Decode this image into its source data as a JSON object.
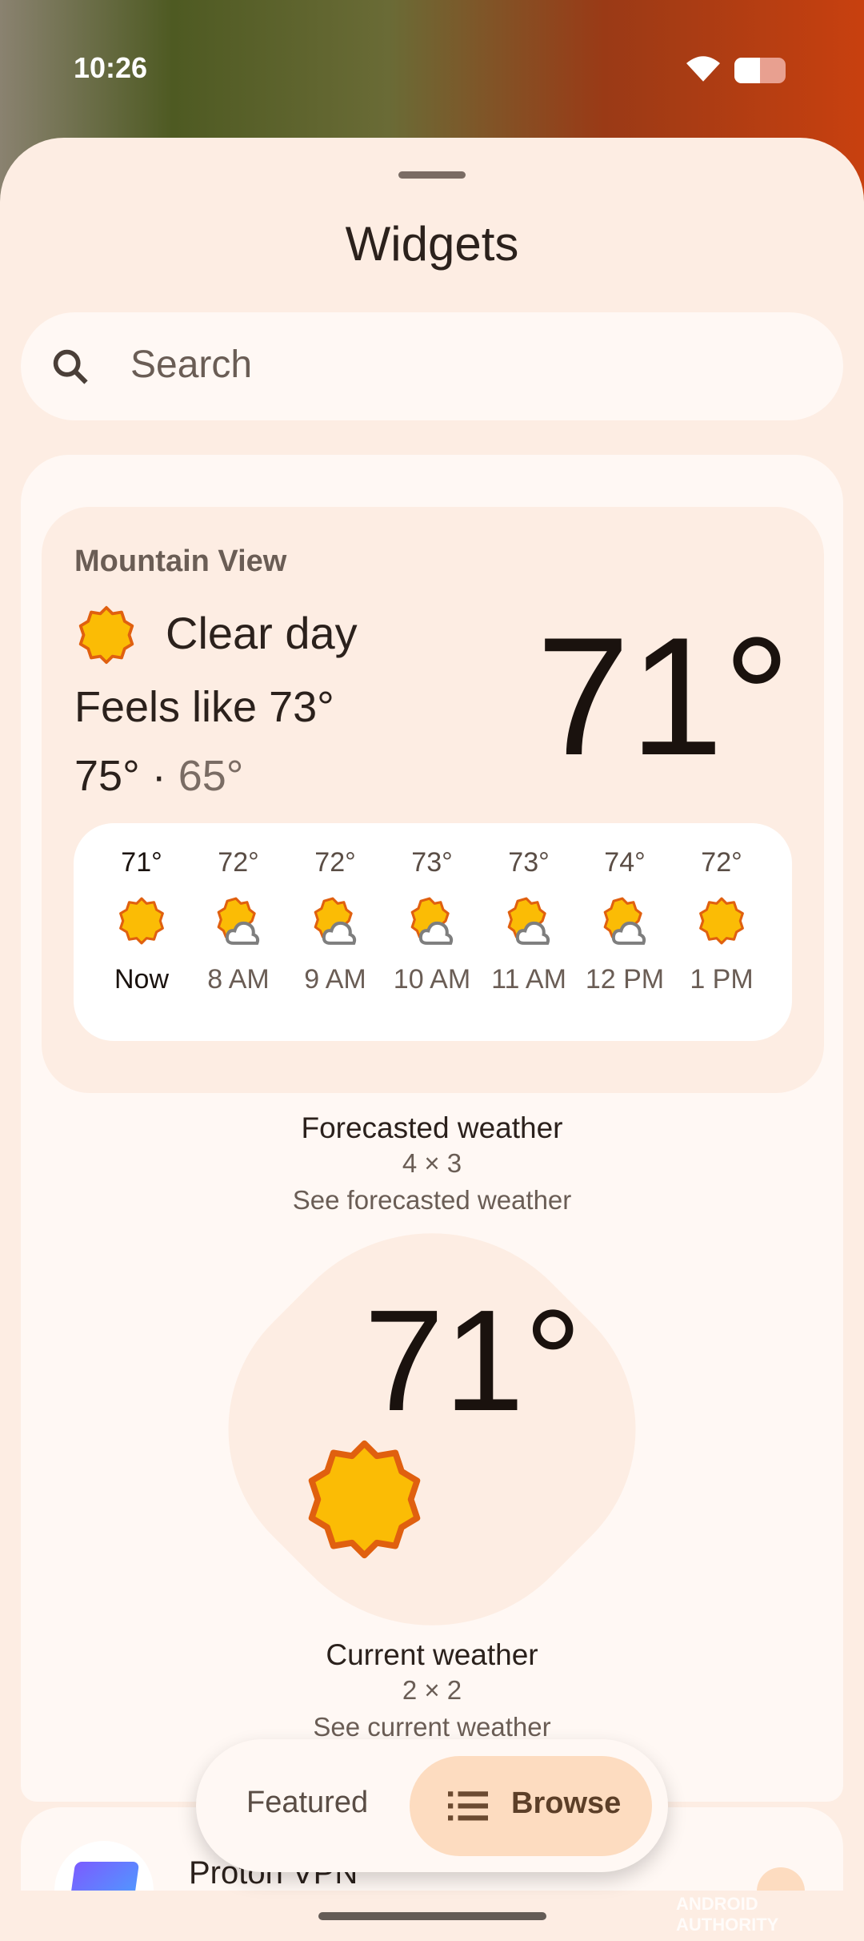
{
  "status": {
    "time": "10:26",
    "wifi": "wifi-icon",
    "battery": "battery-icon",
    "battery_level": 0.5
  },
  "sheet": {
    "title": "Widgets"
  },
  "search": {
    "placeholder": "Search",
    "icon": "search-icon"
  },
  "forecast_widget": {
    "location": "Mountain View",
    "condition": "Clear day",
    "feels_like": "Feels like 73°",
    "high": "75°",
    "separator": "·",
    "low": "65°",
    "temp": "71°",
    "hours": [
      {
        "temp": "71°",
        "time": "Now",
        "icon": "sun"
      },
      {
        "temp": "72°",
        "time": "8 AM",
        "icon": "partly-cloudy"
      },
      {
        "temp": "72°",
        "time": "9 AM",
        "icon": "partly-cloudy"
      },
      {
        "temp": "73°",
        "time": "10 AM",
        "icon": "partly-cloudy"
      },
      {
        "temp": "73°",
        "time": "11 AM",
        "icon": "partly-cloudy"
      },
      {
        "temp": "74°",
        "time": "12 PM",
        "icon": "partly-cloudy"
      },
      {
        "temp": "72°",
        "time": "1 PM",
        "icon": "sun"
      }
    ],
    "name": "Forecasted weather",
    "size": "4 × 3",
    "description": "See forecasted weather"
  },
  "current_widget": {
    "temp": "71°",
    "name": "Current weather",
    "size": "2 × 2",
    "description": "See current weather"
  },
  "next_app": {
    "name": "Proton VPN"
  },
  "tabs": {
    "featured": "Featured",
    "browse": "Browse",
    "selected": "Browse"
  },
  "watermark": "ANDROID AUTHORITY",
  "colors": {
    "sheet": "#fdede3",
    "card": "#fff8f4",
    "accent": "#fddcc0",
    "sun": "#fbbc05",
    "sun_edge": "#e0600f"
  }
}
